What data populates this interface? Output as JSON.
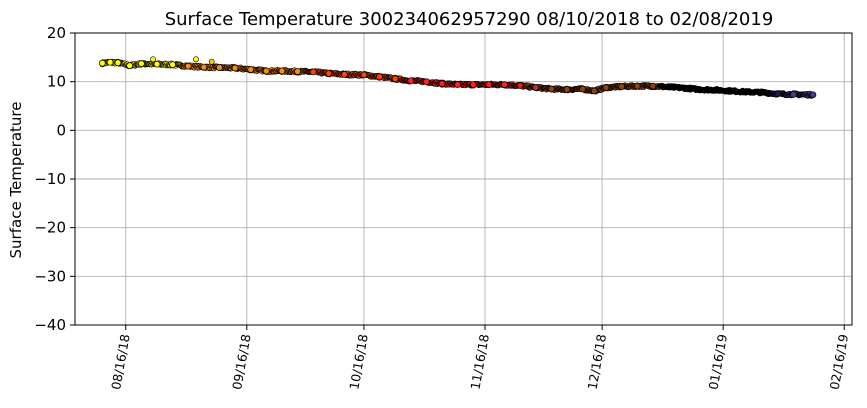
{
  "chart_data": {
    "type": "scatter",
    "title": "Surface Temperature 300234062957290  08/10/2018 to 02/08/2019",
    "xlabel": "",
    "ylabel": "Surface Temperature",
    "ylim": [
      -40,
      20
    ],
    "yticks": [
      20,
      10,
      0,
      -10,
      -20,
      -30,
      -40
    ],
    "yticklabels": [
      "20",
      "10",
      "0",
      "−10",
      "−20",
      "−30",
      "−40"
    ],
    "xlim": [
      "2018-08-03",
      "2019-02-18"
    ],
    "xticks": [
      "2018-08-16",
      "2018-09-16",
      "2018-10-16",
      "2018-11-16",
      "2018-12-16",
      "2019-01-16",
      "2019-02-16"
    ],
    "xticklabels": [
      "08/16/18",
      "09/16/18",
      "10/16/18",
      "11/16/18",
      "12/16/18",
      "01/16/19",
      "02/16/19"
    ],
    "grid": true,
    "colormap": "CMRmap",
    "marker_color_by": "date",
    "points": [
      {
        "x": "2018-08-10",
        "y": 13.8,
        "color": "#ffff00"
      },
      {
        "x": "2018-08-12",
        "y": 14.0,
        "color": "#ffff00"
      },
      {
        "x": "2018-08-14",
        "y": 13.9,
        "color": "#ffff00"
      },
      {
        "x": "2018-08-17",
        "y": 13.3,
        "color": "#ffff00"
      },
      {
        "x": "2018-08-20",
        "y": 13.7,
        "color": "#ffff00"
      },
      {
        "x": "2018-08-24",
        "y": 13.6,
        "color": "#ffff00"
      },
      {
        "x": "2018-08-28",
        "y": 13.5,
        "color": "#ffff00"
      },
      {
        "x": "2018-09-01",
        "y": 13.2,
        "color": "#ff8c00"
      },
      {
        "x": "2018-09-05",
        "y": 13.0,
        "color": "#ff8c00"
      },
      {
        "x": "2018-09-09",
        "y": 12.9,
        "color": "#ff8c00"
      },
      {
        "x": "2018-09-13",
        "y": 12.8,
        "color": "#ff8c00"
      },
      {
        "x": "2018-09-17",
        "y": 12.5,
        "color": "#ff8c00"
      },
      {
        "x": "2018-09-21",
        "y": 12.2,
        "color": "#ff8c00"
      },
      {
        "x": "2018-09-25",
        "y": 12.2,
        "color": "#ff8c00"
      },
      {
        "x": "2018-09-29",
        "y": 12.1,
        "color": "#ff8c00"
      },
      {
        "x": "2018-10-03",
        "y": 12.0,
        "color": "#ff4500"
      },
      {
        "x": "2018-10-07",
        "y": 11.7,
        "color": "#ff4500"
      },
      {
        "x": "2018-10-11",
        "y": 11.5,
        "color": "#ff4500"
      },
      {
        "x": "2018-10-16",
        "y": 11.4,
        "color": "#ff4500"
      },
      {
        "x": "2018-10-20",
        "y": 11.0,
        "color": "#ff4500"
      },
      {
        "x": "2018-10-24",
        "y": 10.6,
        "color": "#ff4500"
      },
      {
        "x": "2018-10-28",
        "y": 10.2,
        "color": "#ff2020"
      },
      {
        "x": "2018-11-01",
        "y": 10.0,
        "color": "#ff2020"
      },
      {
        "x": "2018-11-05",
        "y": 9.6,
        "color": "#ff2020"
      },
      {
        "x": "2018-11-09",
        "y": 9.4,
        "color": "#ff2020"
      },
      {
        "x": "2018-11-13",
        "y": 9.4,
        "color": "#ff2020"
      },
      {
        "x": "2018-11-17",
        "y": 9.4,
        "color": "#ff2020"
      },
      {
        "x": "2018-11-21",
        "y": 9.4,
        "color": "#ff2020"
      },
      {
        "x": "2018-11-25",
        "y": 9.2,
        "color": "#e02010"
      },
      {
        "x": "2018-11-29",
        "y": 8.8,
        "color": "#b03a1a"
      },
      {
        "x": "2018-12-03",
        "y": 8.5,
        "color": "#8b4513"
      },
      {
        "x": "2018-12-07",
        "y": 8.4,
        "color": "#8b4513"
      },
      {
        "x": "2018-12-11",
        "y": 8.5,
        "color": "#8b4513"
      },
      {
        "x": "2018-12-14",
        "y": 8.1,
        "color": "#8b4513"
      },
      {
        "x": "2018-12-17",
        "y": 8.8,
        "color": "#8b4513"
      },
      {
        "x": "2018-12-21",
        "y": 9.0,
        "color": "#8b4513"
      },
      {
        "x": "2018-12-25",
        "y": 9.1,
        "color": "#8b4513"
      },
      {
        "x": "2018-12-29",
        "y": 9.1,
        "color": "#8b4513"
      },
      {
        "x": "2019-01-02",
        "y": 8.9,
        "color": "#000000"
      },
      {
        "x": "2019-01-06",
        "y": 8.7,
        "color": "#000000"
      },
      {
        "x": "2019-01-10",
        "y": 8.4,
        "color": "#000000"
      },
      {
        "x": "2019-01-14",
        "y": 8.3,
        "color": "#000000"
      },
      {
        "x": "2019-01-18",
        "y": 8.1,
        "color": "#000000"
      },
      {
        "x": "2019-01-22",
        "y": 7.9,
        "color": "#000000"
      },
      {
        "x": "2019-01-26",
        "y": 7.8,
        "color": "#000000"
      },
      {
        "x": "2019-01-30",
        "y": 7.5,
        "color": "#1a1a5a"
      },
      {
        "x": "2019-02-03",
        "y": 7.4,
        "color": "#4b3a8a"
      },
      {
        "x": "2019-02-08",
        "y": 7.3,
        "color": "#4b3a8a"
      }
    ]
  }
}
